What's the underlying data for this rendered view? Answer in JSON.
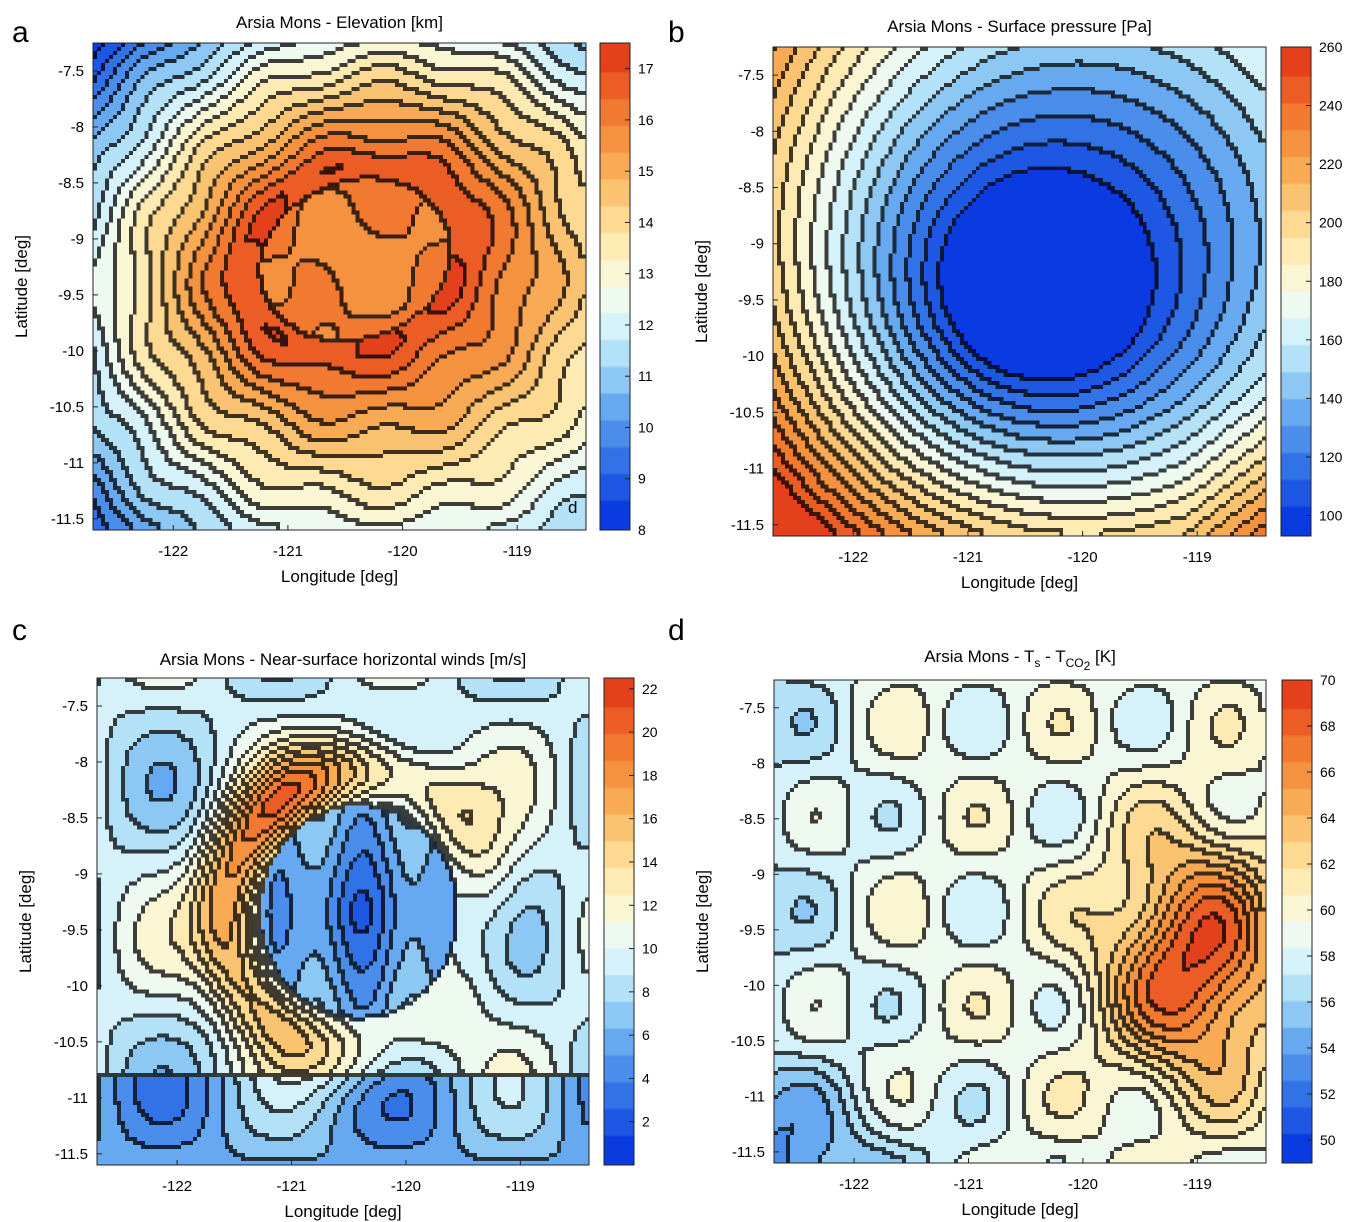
{
  "figure": {
    "panels": [
      {
        "letter": "a",
        "title": "Arsia Mons - Elevation [km]",
        "inset_letter": "d"
      },
      {
        "letter": "b",
        "title": "Arsia Mons - Surface pressure [Pa]"
      },
      {
        "letter": "c",
        "title": "Arsia Mons - Near-surface horizontal winds [m/s]"
      },
      {
        "letter": "d",
        "title_main": "Arsia Mons -  T",
        "title_sub1": "s",
        "title_mid": " - T",
        "title_sub2": "CO",
        "title_sub3": "2",
        "title_unit": " [K]"
      }
    ],
    "colormap": [
      "#0a3be0",
      "#2f6fe6",
      "#5fa2ef",
      "#a6dcf7",
      "#e9fbfd",
      "#fff3c6",
      "#fcd486",
      "#f7a54d",
      "#f2762e",
      "#e3401b"
    ]
  },
  "chart_data": [
    {
      "type": "contourf",
      "title": "Arsia Mons - Elevation [km]",
      "xlabel": "Longitude [deg]",
      "ylabel": "Latitude [deg]",
      "xlim": [
        -122.7,
        -118.4
      ],
      "ylim": [
        -11.6,
        -7.25
      ],
      "xticks": [
        -122,
        -121,
        -120,
        -119
      ],
      "xtick_labels": [
        "-122",
        "-121",
        "-120",
        "-119"
      ],
      "yticks": [
        -7.5,
        -8,
        -8.5,
        -9,
        -9.5,
        -10,
        -10.5,
        -11,
        -11.5
      ],
      "ytick_labels": [
        "-7.5",
        "-8",
        "-8.5",
        "-9",
        "-9.5",
        "-10",
        "-10.5",
        "-11",
        "-11.5"
      ],
      "colorbar": {
        "range": [
          8,
          17.5
        ],
        "ticks": [
          8,
          9,
          10,
          11,
          12,
          13,
          14,
          15,
          16,
          17
        ],
        "tick_labels": [
          "8",
          "9",
          "10",
          "11",
          "12",
          "13",
          "14",
          "15",
          "16",
          "17"
        ]
      },
      "field": {
        "kind": "summit",
        "base": 8,
        "peak": 17.5,
        "center": [
          -120.4,
          -9.2
        ],
        "rim_radius_deg": 1.0,
        "caldera_value": 15.6
      }
    },
    {
      "type": "contourf",
      "title": "Arsia Mons - Surface pressure [Pa]",
      "xlabel": "Longitude [deg]",
      "ylabel": "Latitude [deg]",
      "xlim": [
        -122.7,
        -118.4
      ],
      "ylim": [
        -11.6,
        -7.25
      ],
      "xticks": [
        -122,
        -121,
        -120,
        -119
      ],
      "xtick_labels": [
        "-122",
        "-121",
        "-120",
        "-119"
      ],
      "yticks": [
        -7.5,
        -8,
        -8.5,
        -9,
        -9.5,
        -10,
        -10.5,
        -11,
        -11.5
      ],
      "ytick_labels": [
        "-7.5",
        "-8",
        "-8.5",
        "-9",
        "-9.5",
        "-10",
        "-10.5",
        "-11",
        "-11.5"
      ],
      "colorbar": {
        "range": [
          93,
          260
        ],
        "ticks": [
          100,
          120,
          140,
          160,
          180,
          200,
          220,
          240,
          260
        ],
        "tick_labels": [
          "100",
          "120",
          "140",
          "160",
          "180",
          "200",
          "220",
          "240",
          "260"
        ]
      },
      "field": {
        "kind": "basin",
        "floor": 100,
        "edge": 255,
        "center": [
          -120.3,
          -9.3
        ]
      }
    },
    {
      "type": "contourf",
      "title": "Arsia Mons - Near-surface horizontal winds [m/s]",
      "xlabel": "Longitude [deg]",
      "ylabel": "Latitude [deg]",
      "xlim": [
        -122.7,
        -118.4
      ],
      "ylim": [
        -11.6,
        -7.25
      ],
      "xticks": [
        -122,
        -121,
        -120,
        -119
      ],
      "xtick_labels": [
        "-122",
        "-121",
        "-120",
        "-119"
      ],
      "yticks": [
        -7.5,
        -8,
        -8.5,
        -9,
        -9.5,
        -10,
        -10.5,
        -11,
        -11.5
      ],
      "ytick_labels": [
        "-7.5",
        "-8",
        "-8.5",
        "-9",
        "-9.5",
        "-10",
        "-10.5",
        "-11",
        "-11.5"
      ],
      "colorbar": {
        "range": [
          0,
          22.5
        ],
        "ticks": [
          2,
          4,
          6,
          8,
          10,
          12,
          14,
          16,
          18,
          20,
          22
        ],
        "tick_labels": [
          "2",
          "4",
          "6",
          "8",
          "10",
          "12",
          "14",
          "16",
          "18",
          "20",
          "22"
        ]
      },
      "field": {
        "kind": "winds",
        "center": [
          -120.4,
          -9.35
        ],
        "inner_value": 3,
        "ring_value": 18,
        "background": 9
      }
    },
    {
      "type": "contourf",
      "title": "Arsia Mons -  Ts - TCO2 [K]",
      "xlabel": "Longitude [deg]",
      "ylabel": "Latitude [deg]",
      "xlim": [
        -122.7,
        -118.4
      ],
      "ylim": [
        -11.6,
        -7.25
      ],
      "xticks": [
        -122,
        -121,
        -120,
        -119
      ],
      "xtick_labels": [
        "-122",
        "-121",
        "-120",
        "-119"
      ],
      "yticks": [
        -7.5,
        -8,
        -8.5,
        -9,
        -9.5,
        -10,
        -10.5,
        -11,
        -11.5
      ],
      "ytick_labels": [
        "-7.5",
        "-8",
        "-8.5",
        "-9",
        "-9.5",
        "-10",
        "-10.5",
        "-11",
        "-11.5"
      ],
      "colorbar": {
        "range": [
          49,
          70
        ],
        "ticks": [
          50,
          52,
          54,
          56,
          58,
          60,
          62,
          64,
          66,
          68,
          70
        ],
        "tick_labels": [
          "50",
          "52",
          "54",
          "56",
          "58",
          "60",
          "62",
          "64",
          "66",
          "68",
          "70"
        ]
      },
      "field": {
        "kind": "temperature",
        "hotspot": [
          -119.0,
          -9.8
        ],
        "hotspot_value": 70,
        "background": 59
      }
    }
  ]
}
